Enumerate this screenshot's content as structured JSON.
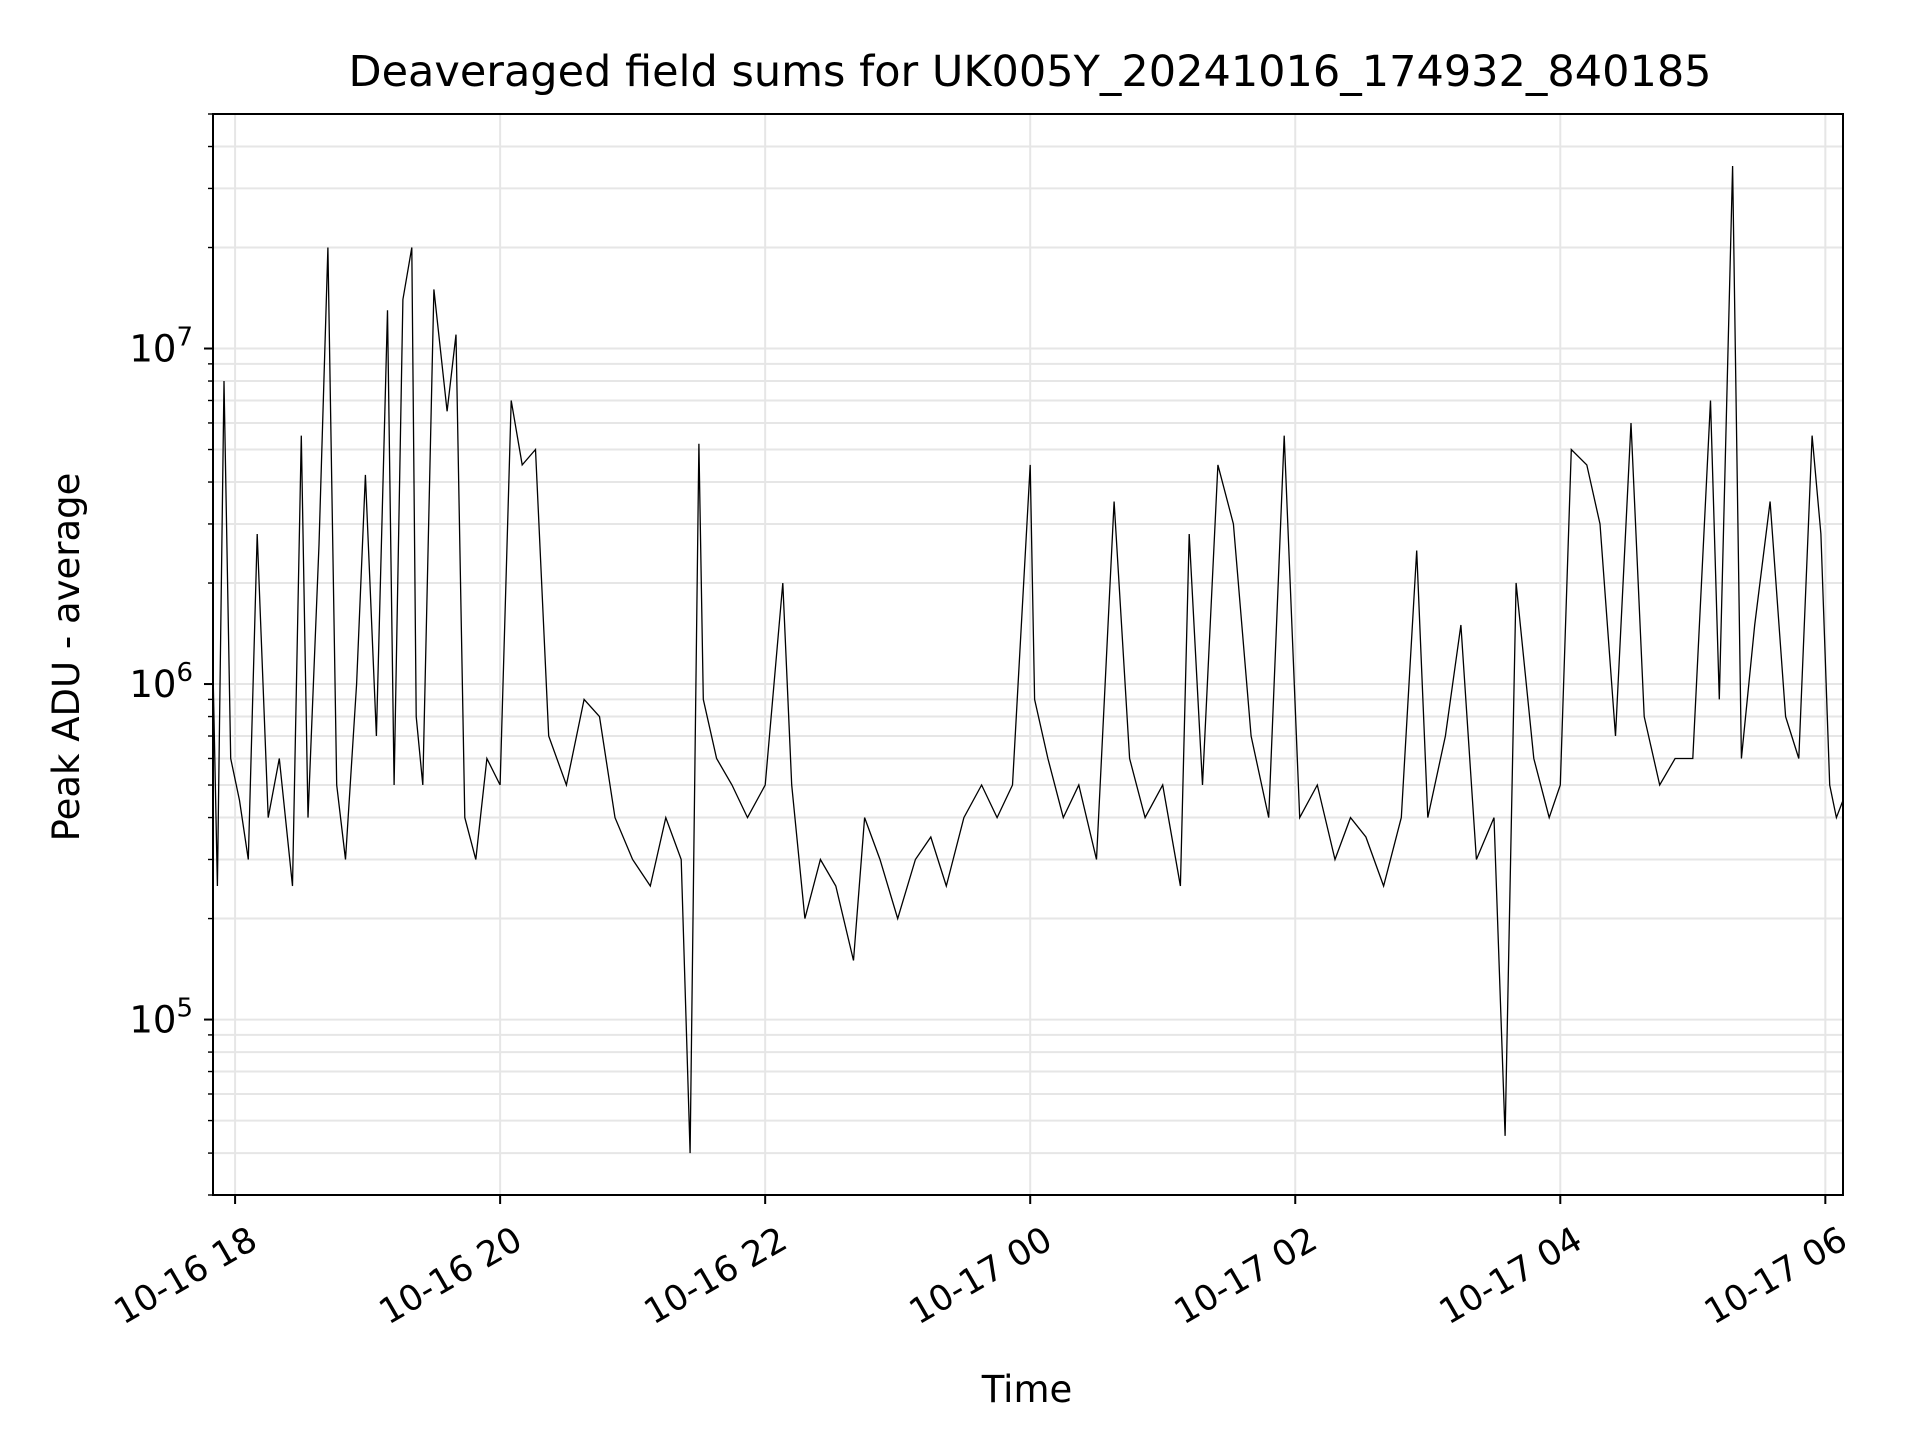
{
  "chart_data": {
    "type": "line",
    "title": "Deaveraged field sums for UK005Y_20241016_174932_840185",
    "xlabel": "Time",
    "ylabel": "Peak ADU - average",
    "x_range": [
      "2024-10-16 17:50",
      "2024-10-17 06:08"
    ],
    "yscale": "log",
    "ylim": [
      30000,
      50000000
    ],
    "grid": true,
    "line_color": "#000000",
    "grid_color": "#e6e6e6",
    "x_ticks": [
      {
        "value": "2024-10-16 18:00",
        "label": "10-16 18"
      },
      {
        "value": "2024-10-16 20:00",
        "label": "10-16 20"
      },
      {
        "value": "2024-10-16 22:00",
        "label": "10-16 22"
      },
      {
        "value": "2024-10-17 00:00",
        "label": "10-17 00"
      },
      {
        "value": "2024-10-17 02:00",
        "label": "10-17 02"
      },
      {
        "value": "2024-10-17 04:00",
        "label": "10-17 04"
      },
      {
        "value": "2024-10-17 06:00",
        "label": "10-17 06"
      }
    ],
    "y_ticks": [
      {
        "value": 100000,
        "base": "10",
        "exp": "5"
      },
      {
        "value": 1000000,
        "base": "10",
        "exp": "6"
      },
      {
        "value": 10000000,
        "base": "10",
        "exp": "7"
      }
    ],
    "series": [
      {
        "x": [
          "2024-10-16 17:50",
          "2024-10-16 17:52",
          "2024-10-16 17:55",
          "2024-10-16 17:58",
          "2024-10-16 18:02",
          "2024-10-16 18:06",
          "2024-10-16 18:10",
          "2024-10-16 18:15",
          "2024-10-16 18:20",
          "2024-10-16 18:26",
          "2024-10-16 18:30",
          "2024-10-16 18:33",
          "2024-10-16 18:38",
          "2024-10-16 18:42",
          "2024-10-16 18:46",
          "2024-10-16 18:50",
          "2024-10-16 18:55",
          "2024-10-16 18:59",
          "2024-10-16 19:04",
          "2024-10-16 19:09",
          "2024-10-16 19:12",
          "2024-10-16 19:16",
          "2024-10-16 19:20",
          "2024-10-16 19:22",
          "2024-10-16 19:25",
          "2024-10-16 19:30",
          "2024-10-16 19:36",
          "2024-10-16 19:40",
          "2024-10-16 19:44",
          "2024-10-16 19:49",
          "2024-10-16 19:54",
          "2024-10-16 20:00",
          "2024-10-16 20:05",
          "2024-10-16 20:10",
          "2024-10-16 20:16",
          "2024-10-16 20:22",
          "2024-10-16 20:30",
          "2024-10-16 20:38",
          "2024-10-16 20:45",
          "2024-10-16 20:52",
          "2024-10-16 21:00",
          "2024-10-16 21:08",
          "2024-10-16 21:15",
          "2024-10-16 21:22",
          "2024-10-16 21:26",
          "2024-10-16 21:30",
          "2024-10-16 21:32",
          "2024-10-16 21:38",
          "2024-10-16 21:45",
          "2024-10-16 21:52",
          "2024-10-16 22:00",
          "2024-10-16 22:08",
          "2024-10-16 22:12",
          "2024-10-16 22:18",
          "2024-10-16 22:25",
          "2024-10-16 22:32",
          "2024-10-16 22:40",
          "2024-10-16 22:45",
          "2024-10-16 22:52",
          "2024-10-16 23:00",
          "2024-10-16 23:08",
          "2024-10-16 23:15",
          "2024-10-16 23:22",
          "2024-10-16 23:30",
          "2024-10-16 23:38",
          "2024-10-16 23:45",
          "2024-10-16 23:52",
          "2024-10-17 00:00",
          "2024-10-17 00:02",
          "2024-10-17 00:08",
          "2024-10-17 00:15",
          "2024-10-17 00:22",
          "2024-10-17 00:30",
          "2024-10-17 00:38",
          "2024-10-17 00:45",
          "2024-10-17 00:52",
          "2024-10-17 01:00",
          "2024-10-17 01:08",
          "2024-10-17 01:12",
          "2024-10-17 01:18",
          "2024-10-17 01:25",
          "2024-10-17 01:32",
          "2024-10-17 01:40",
          "2024-10-17 01:48",
          "2024-10-17 01:55",
          "2024-10-17 02:02",
          "2024-10-17 02:10",
          "2024-10-17 02:18",
          "2024-10-17 02:25",
          "2024-10-17 02:32",
          "2024-10-17 02:40",
          "2024-10-17 02:48",
          "2024-10-17 02:55",
          "2024-10-17 03:00",
          "2024-10-17 03:08",
          "2024-10-17 03:15",
          "2024-10-17 03:22",
          "2024-10-17 03:30",
          "2024-10-17 03:35",
          "2024-10-17 03:40",
          "2024-10-17 03:48",
          "2024-10-17 03:55",
          "2024-10-17 04:00",
          "2024-10-17 04:05",
          "2024-10-17 04:12",
          "2024-10-17 04:18",
          "2024-10-17 04:25",
          "2024-10-17 04:32",
          "2024-10-17 04:38",
          "2024-10-17 04:45",
          "2024-10-17 04:52",
          "2024-10-17 05:00",
          "2024-10-17 05:08",
          "2024-10-17 05:12",
          "2024-10-17 05:18",
          "2024-10-17 05:22",
          "2024-10-17 05:28",
          "2024-10-17 05:35",
          "2024-10-17 05:42",
          "2024-10-17 05:48",
          "2024-10-17 05:54",
          "2024-10-17 05:58",
          "2024-10-17 06:02",
          "2024-10-17 06:05",
          "2024-10-17 06:08"
        ],
        "y": [
          1100000,
          250000,
          8000000,
          600000,
          450000,
          300000,
          2800000,
          400000,
          600000,
          250000,
          5500000,
          400000,
          2600000,
          20000000,
          500000,
          300000,
          1000000,
          4200000,
          700000,
          13000000,
          500000,
          14000000,
          20000000,
          800000,
          500000,
          15000000,
          6500000,
          11000000,
          400000,
          300000,
          600000,
          500000,
          7000000,
          4500000,
          5000000,
          700000,
          500000,
          900000,
          800000,
          400000,
          300000,
          250000,
          400000,
          300000,
          40000,
          5200000,
          900000,
          600000,
          500000,
          400000,
          500000,
          2000000,
          500000,
          200000,
          300000,
          250000,
          150000,
          400000,
          300000,
          200000,
          300000,
          350000,
          250000,
          400000,
          500000,
          400000,
          500000,
          4500000,
          900000,
          600000,
          400000,
          500000,
          300000,
          3500000,
          600000,
          400000,
          500000,
          250000,
          2800000,
          500000,
          4500000,
          3000000,
          700000,
          400000,
          5500000,
          400000,
          500000,
          300000,
          400000,
          350000,
          250000,
          400000,
          2500000,
          400000,
          700000,
          1500000,
          300000,
          400000,
          45000,
          2000000,
          600000,
          400000,
          500000,
          5000000,
          4500000,
          3000000,
          700000,
          6000000,
          800000,
          500000,
          600000,
          600000,
          7000000,
          900000,
          35000000,
          600000,
          1500000,
          3500000,
          800000,
          600000,
          5500000,
          2800000,
          500000,
          400000,
          450000
        ]
      }
    ]
  }
}
